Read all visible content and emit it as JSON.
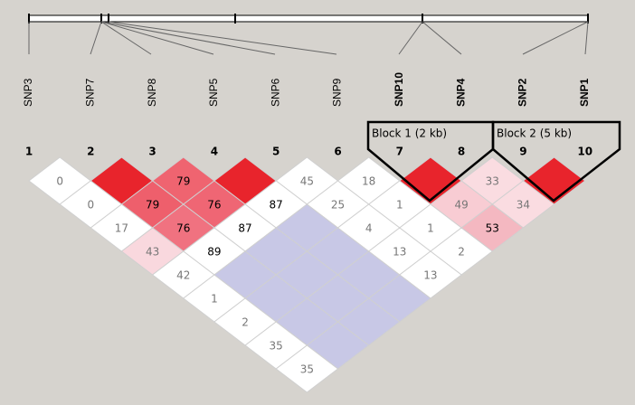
{
  "snps": [
    {
      "name": "SNP3",
      "bold": false
    },
    {
      "name": "SNP7",
      "bold": false
    },
    {
      "name": "SNP8",
      "bold": false
    },
    {
      "name": "SNP5",
      "bold": false
    },
    {
      "name": "SNP6",
      "bold": false
    },
    {
      "name": "SNP9",
      "bold": false
    },
    {
      "name": "SNP10",
      "bold": true
    },
    {
      "name": "SNP4",
      "bold": true
    },
    {
      "name": "SNP2",
      "bold": true
    },
    {
      "name": "SNP1",
      "bold": true
    }
  ],
  "indices": [
    1,
    2,
    3,
    4,
    5,
    6,
    7,
    8,
    9,
    10
  ],
  "blocks": [
    "Block 1 (2 kb)",
    "Block 2 (5 kb)"
  ],
  "ld": {
    "rows": [
      [
        {
          "value": 0,
          "color": "#ffffff",
          "text_color": "#777777"
        },
        {
          "value": null,
          "color": "#e8242c"
        },
        {
          "value": 79,
          "color": "#ef6470",
          "text_color": "#000000"
        },
        {
          "value": null,
          "color": "#e8242c"
        },
        {
          "value": 45,
          "color": "#ffffff",
          "text_color": "#777777"
        },
        {
          "value": 18,
          "color": "#ffffff",
          "text_color": "#777777"
        },
        {
          "value": null,
          "color": "#e8242c"
        },
        {
          "value": 33,
          "color": "#fadce1",
          "text_color": "#777777"
        },
        {
          "value": null,
          "color": "#e8242c"
        }
      ],
      [
        {
          "value": 0,
          "color": "#ffffff",
          "text_color": "#777777"
        },
        {
          "value": 79,
          "color": "#ee5f6c",
          "text_color": "#000000"
        },
        {
          "value": 76,
          "color": "#ef6674",
          "text_color": "#000000"
        },
        {
          "value": 87,
          "color": "#ffffff",
          "text_color": "#000000"
        },
        {
          "value": 25,
          "color": "#ffffff",
          "text_color": "#777777"
        },
        {
          "value": 1,
          "color": "#ffffff",
          "text_color": "#777777"
        },
        {
          "value": 49,
          "color": "#f8ccd3",
          "text_color": "#777777"
        },
        {
          "value": 34,
          "color": "#fadce1",
          "text_color": "#777777"
        }
      ],
      [
        {
          "value": 17,
          "color": "#ffffff",
          "text_color": "#777777"
        },
        {
          "value": 76,
          "color": "#f07280",
          "text_color": "#000000"
        },
        {
          "value": 87,
          "color": "#ffffff",
          "text_color": "#000000"
        },
        {
          "value": null,
          "color": "#c8c8e6"
        },
        {
          "value": 4,
          "color": "#ffffff",
          "text_color": "#777777"
        },
        {
          "value": 1,
          "color": "#ffffff",
          "text_color": "#777777"
        },
        {
          "value": 53,
          "color": "#f4b8c1",
          "text_color": "#000000"
        }
      ],
      [
        {
          "value": 43,
          "color": "#f9d8de",
          "text_color": "#777777"
        },
        {
          "value": 89,
          "color": "#ffffff",
          "text_color": "#000000"
        },
        {
          "value": null,
          "color": "#c8c8e6"
        },
        {
          "value": null,
          "color": "#c8c8e6"
        },
        {
          "value": 13,
          "color": "#ffffff",
          "text_color": "#777777"
        },
        {
          "value": 2,
          "color": "#ffffff",
          "text_color": "#777777"
        }
      ],
      [
        {
          "value": 42,
          "color": "#ffffff",
          "text_color": "#777777"
        },
        {
          "value": null,
          "color": "#c8c8e6"
        },
        {
          "value": null,
          "color": "#c8c8e6"
        },
        {
          "value": null,
          "color": "#c8c8e6"
        },
        {
          "value": 13,
          "color": "#ffffff",
          "text_color": "#777777"
        }
      ],
      [
        {
          "value": 1,
          "color": "#ffffff",
          "text_color": "#777777"
        },
        {
          "value": null,
          "color": "#c8c8e6"
        },
        {
          "value": null,
          "color": "#c8c8e6"
        },
        {
          "value": null,
          "color": "#c8c8e6"
        }
      ],
      [
        {
          "value": 2,
          "color": "#ffffff",
          "text_color": "#777777"
        },
        {
          "value": null,
          "color": "#c8c8e6"
        },
        {
          "value": null,
          "color": "#c8c8e6"
        }
      ],
      [
        {
          "value": 35,
          "color": "#ffffff",
          "text_color": "#777777"
        },
        {
          "value": null,
          "color": "#c8c8e6"
        }
      ],
      [
        {
          "value": 35,
          "color": "#ffffff",
          "text_color": "#777777"
        }
      ]
    ]
  }
}
